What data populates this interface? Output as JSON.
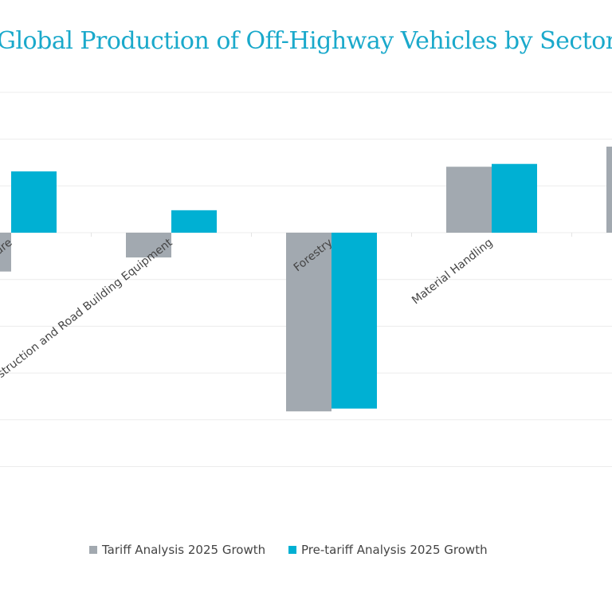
{
  "chart_data": {
    "type": "bar",
    "title": "Global Production of Off-Highway Vehicles by Sector",
    "categories": [
      "Agriculture",
      "Construction and Road Building Equipment",
      "Forestry",
      "Material Handling",
      ""
    ],
    "series": [
      {
        "name": "Tariff Analysis 2025 Growth",
        "color": "#a2a9b0",
        "values": [
          -0.83,
          -0.53,
          -3.82,
          1.41,
          1.84
        ]
      },
      {
        "name": "Pre-tariff Analysis 2025 Growth",
        "color": "#00b0d3",
        "values": [
          1.31,
          0.48,
          -3.76,
          1.47,
          null
        ]
      }
    ],
    "ylim": [
      -5,
      3
    ],
    "grid": true,
    "legend_position": "bottom",
    "xlabel": "",
    "ylabel": ""
  }
}
